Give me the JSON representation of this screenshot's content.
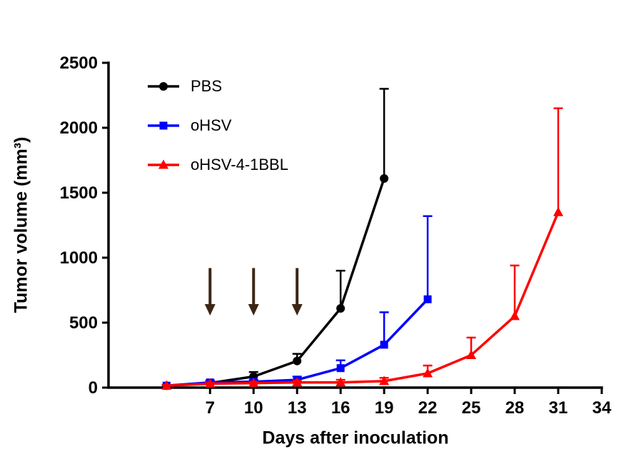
{
  "figure": {
    "background": "#ffffff"
  },
  "chart_data": {
    "type": "line",
    "title": "",
    "xlabel": "Days after inoculation",
    "ylabel": "Tumor volume (mm³)",
    "xlim": [
      0,
      34
    ],
    "ylim": [
      0,
      2500
    ],
    "xticks": [
      7,
      10,
      13,
      16,
      19,
      22,
      25,
      28,
      31,
      34
    ],
    "yticks": [
      0,
      500,
      1000,
      1500,
      2000,
      2500
    ],
    "grid": false,
    "legend_position": "top-left-inside",
    "axis_color": "#000000",
    "error_bars": "upper-only",
    "series": [
      {
        "name": "PBS",
        "color": "#000000",
        "marker": "circle",
        "x": [
          4,
          7,
          10,
          13,
          16,
          19
        ],
        "y": [
          15,
          35,
          85,
          205,
          610,
          1610
        ],
        "err_up": [
          5,
          15,
          35,
          55,
          290,
          690
        ]
      },
      {
        "name": "oHSV",
        "color": "#0000ff",
        "marker": "square",
        "x": [
          4,
          7,
          10,
          13,
          16,
          19,
          22
        ],
        "y": [
          15,
          40,
          45,
          60,
          150,
          330,
          680
        ],
        "err_up": [
          5,
          15,
          15,
          25,
          60,
          250,
          640
        ]
      },
      {
        "name": "oHSV-4-1BBL",
        "color": "#ff0000",
        "marker": "triangle",
        "x": [
          4,
          7,
          10,
          13,
          16,
          19,
          22,
          25,
          28,
          31
        ],
        "y": [
          15,
          30,
          35,
          40,
          40,
          50,
          110,
          250,
          550,
          1350
        ],
        "err_up": [
          5,
          10,
          10,
          15,
          20,
          25,
          60,
          135,
          390,
          800
        ]
      }
    ],
    "annotations": {
      "treatment_arrows": {
        "x": [
          7,
          10,
          13
        ],
        "y_from": 920,
        "y_to": 555,
        "color": "#3b2616"
      }
    }
  }
}
